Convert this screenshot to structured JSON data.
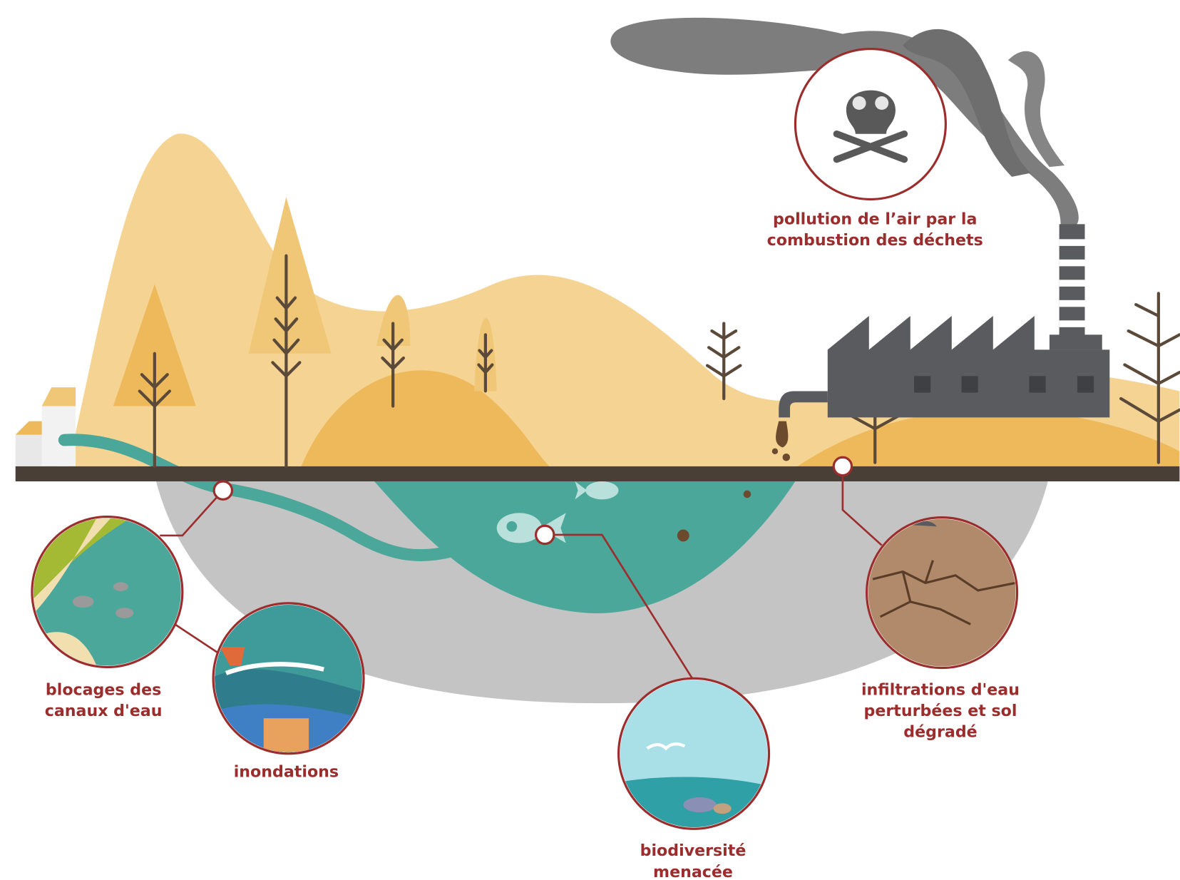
{
  "callouts": [
    {
      "lines": [
        "pollution de l’air par la",
        "combustion des déchets"
      ]
    },
    {
      "lines": [
        "blocages des",
        "canaux d'eau"
      ]
    },
    {
      "lines": [
        "inondations"
      ]
    },
    {
      "lines": [
        "biodiversité",
        "menacée"
      ]
    },
    {
      "lines": [
        "infiltrations d'eau",
        "perturbées et sol",
        "dégradé"
      ]
    }
  ]
}
